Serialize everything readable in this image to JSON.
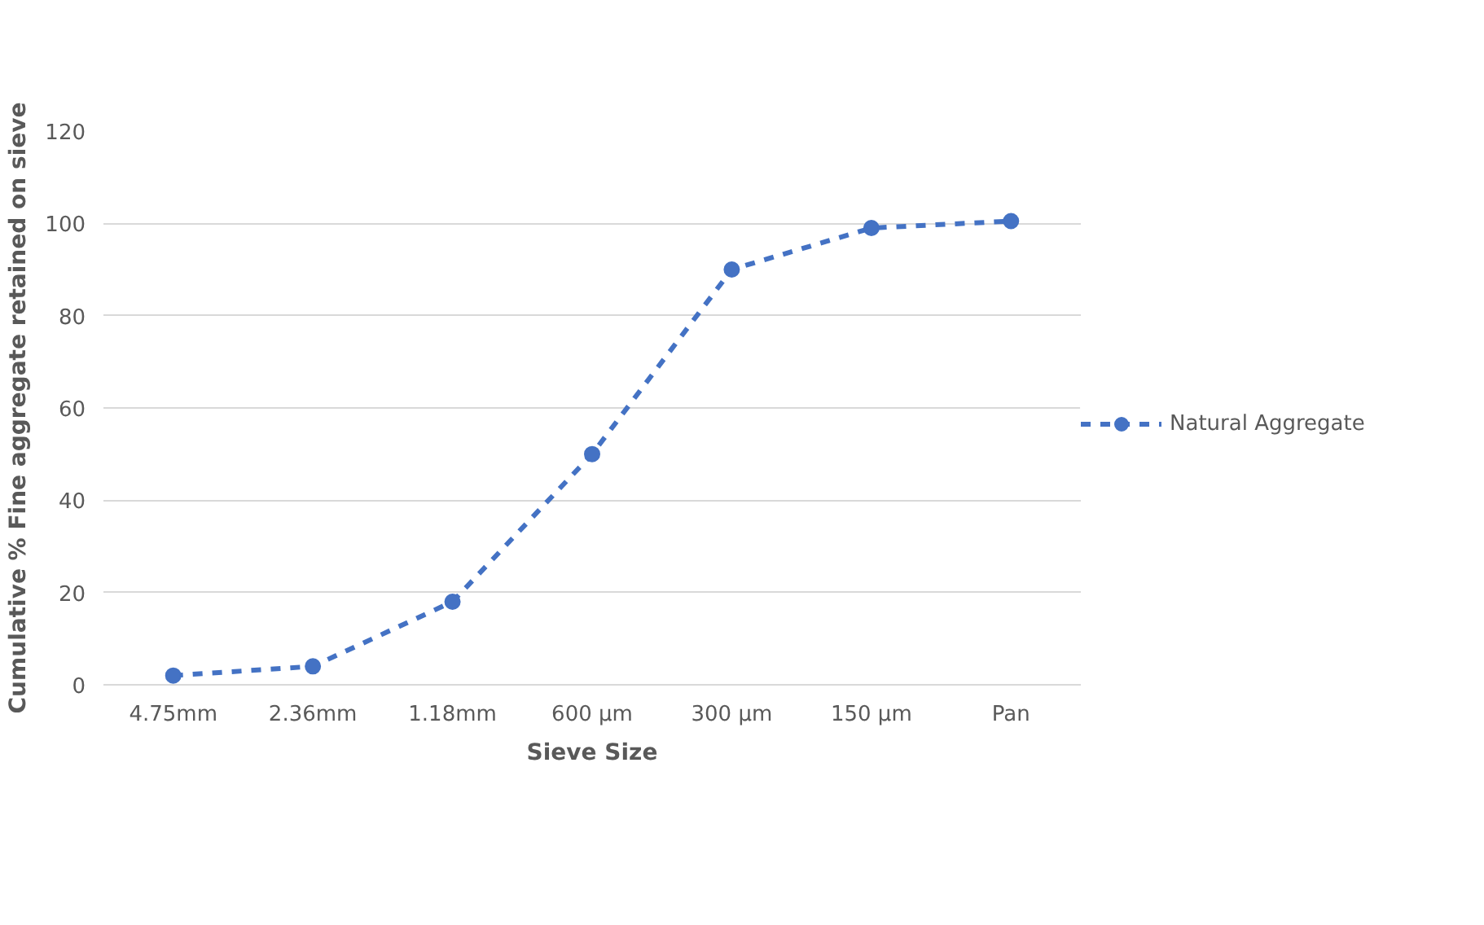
{
  "chart_data": {
    "type": "line",
    "xlabel": "Sieve Size",
    "ylabel": "Cumulative % Fine aggregate retained on sieve",
    "categories": [
      "4.75mm",
      "2.36mm",
      "1.18mm",
      "600 µm",
      "300 µm",
      "150 µm",
      "Pan"
    ],
    "series": [
      {
        "name": "Natural Aggregate",
        "color": "#4472c4",
        "values": [
          2,
          4,
          18,
          50,
          90,
          99,
          100.5
        ]
      }
    ],
    "ylim": [
      0,
      120
    ],
    "yticks": [
      0,
      20,
      40,
      60,
      80,
      100,
      120
    ],
    "grid": "y",
    "legend": "right",
    "marker": "circle",
    "line_style": "dashed"
  }
}
